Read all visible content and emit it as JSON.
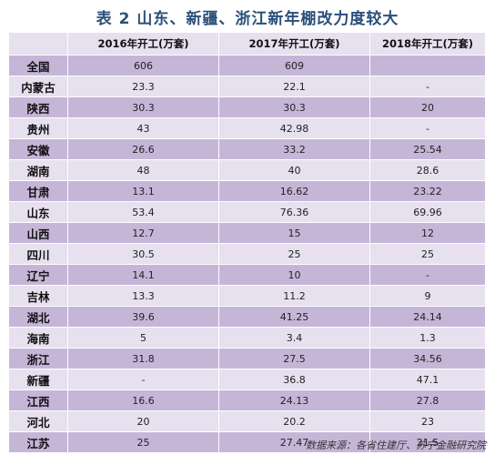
{
  "title": "表 2 山东、新疆、浙江新年棚改力度较大",
  "table": {
    "headers": [
      "",
      "2016年开工(万套)",
      "2017年开工(万套)",
      "2018年开工(万套)"
    ],
    "rows": [
      {
        "region": "全国",
        "y2016": "606",
        "y2017": "609",
        "y2018": ""
      },
      {
        "region": "内蒙古",
        "y2016": "23.3",
        "y2017": "22.1",
        "y2018": "-"
      },
      {
        "region": "陕西",
        "y2016": "30.3",
        "y2017": "30.3",
        "y2018": "20"
      },
      {
        "region": "贵州",
        "y2016": "43",
        "y2017": "42.98",
        "y2018": "-"
      },
      {
        "region": "安徽",
        "y2016": "26.6",
        "y2017": "33.2",
        "y2018": "25.54"
      },
      {
        "region": "湖南",
        "y2016": "48",
        "y2017": "40",
        "y2018": "28.6"
      },
      {
        "region": "甘肃",
        "y2016": "13.1",
        "y2017": "16.62",
        "y2018": "23.22"
      },
      {
        "region": "山东",
        "y2016": "53.4",
        "y2017": "76.36",
        "y2018": "69.96"
      },
      {
        "region": "山西",
        "y2016": "12.7",
        "y2017": "15",
        "y2018": "12"
      },
      {
        "region": "四川",
        "y2016": "30.5",
        "y2017": "25",
        "y2018": "25"
      },
      {
        "region": "辽宁",
        "y2016": "14.1",
        "y2017": "10",
        "y2018": "-"
      },
      {
        "region": "吉林",
        "y2016": "13.3",
        "y2017": "11.2",
        "y2018": "9"
      },
      {
        "region": "湖北",
        "y2016": "39.6",
        "y2017": "41.25",
        "y2018": "24.14"
      },
      {
        "region": "海南",
        "y2016": "5",
        "y2017": "3.4",
        "y2018": "1.3"
      },
      {
        "region": "浙江",
        "y2016": "31.8",
        "y2017": "27.5",
        "y2018": "34.56"
      },
      {
        "region": "新疆",
        "y2016": "-",
        "y2017": "36.8",
        "y2018": "47.1"
      },
      {
        "region": "江西",
        "y2016": "16.6",
        "y2017": "24.13",
        "y2018": "27.8"
      },
      {
        "region": "河北",
        "y2016": "20",
        "y2017": "20.2",
        "y2018": "23"
      },
      {
        "region": "江苏",
        "y2016": "25",
        "y2017": "27.47",
        "y2018": "21.5"
      }
    ]
  },
  "source": "数据来源：各省住建厅、苏宁金融研究院",
  "colors": {
    "title": "#2b4f7a",
    "row_dark": "#c5b6d8",
    "row_light": "#e6e0ef"
  }
}
